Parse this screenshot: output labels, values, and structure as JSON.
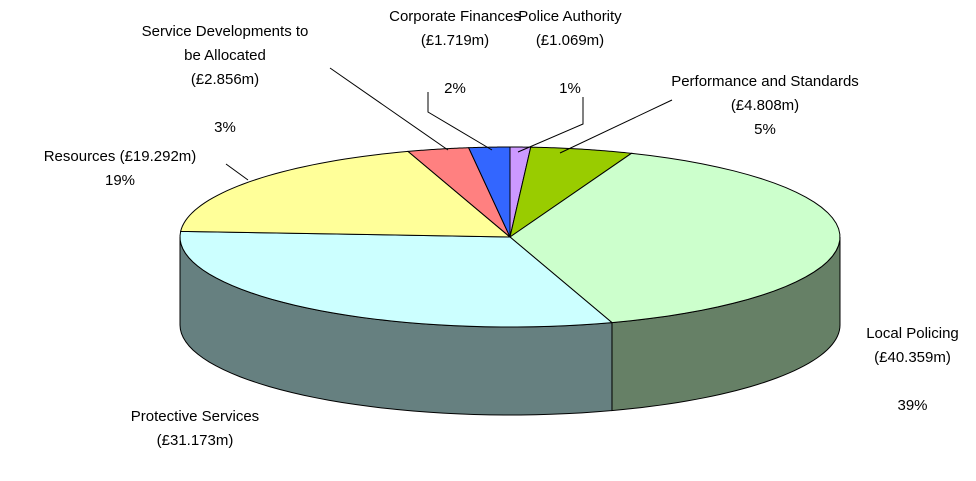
{
  "chart_data": {
    "type": "pie3d",
    "categories": [
      "Police Authority",
      "Performance and Standards",
      "Local Policing",
      "Protective Services",
      "Resources",
      "Service Developments to be Allocated",
      "Corporate Finances"
    ],
    "values": [
      1,
      5,
      39,
      31,
      19,
      3,
      2
    ],
    "value_labels": [
      "1%",
      "5%",
      "39%",
      "31%",
      "19%",
      "3%",
      "2%"
    ],
    "amounts": [
      1.069,
      4.808,
      40.359,
      31.173,
      19.292,
      2.856,
      1.719
    ],
    "amount_labels": [
      "(£1.069m)",
      "(£4.808m)",
      "(£40.359m)",
      "(£31.173m)",
      "(£19.292m)",
      "(£2.856m)",
      "(£1.719m)"
    ],
    "colors": [
      "#cc99ff",
      "#99cc00",
      "#ccffcc",
      "#ccffff",
      "#ffff99",
      "#ff8080",
      "#3366ff"
    ]
  }
}
